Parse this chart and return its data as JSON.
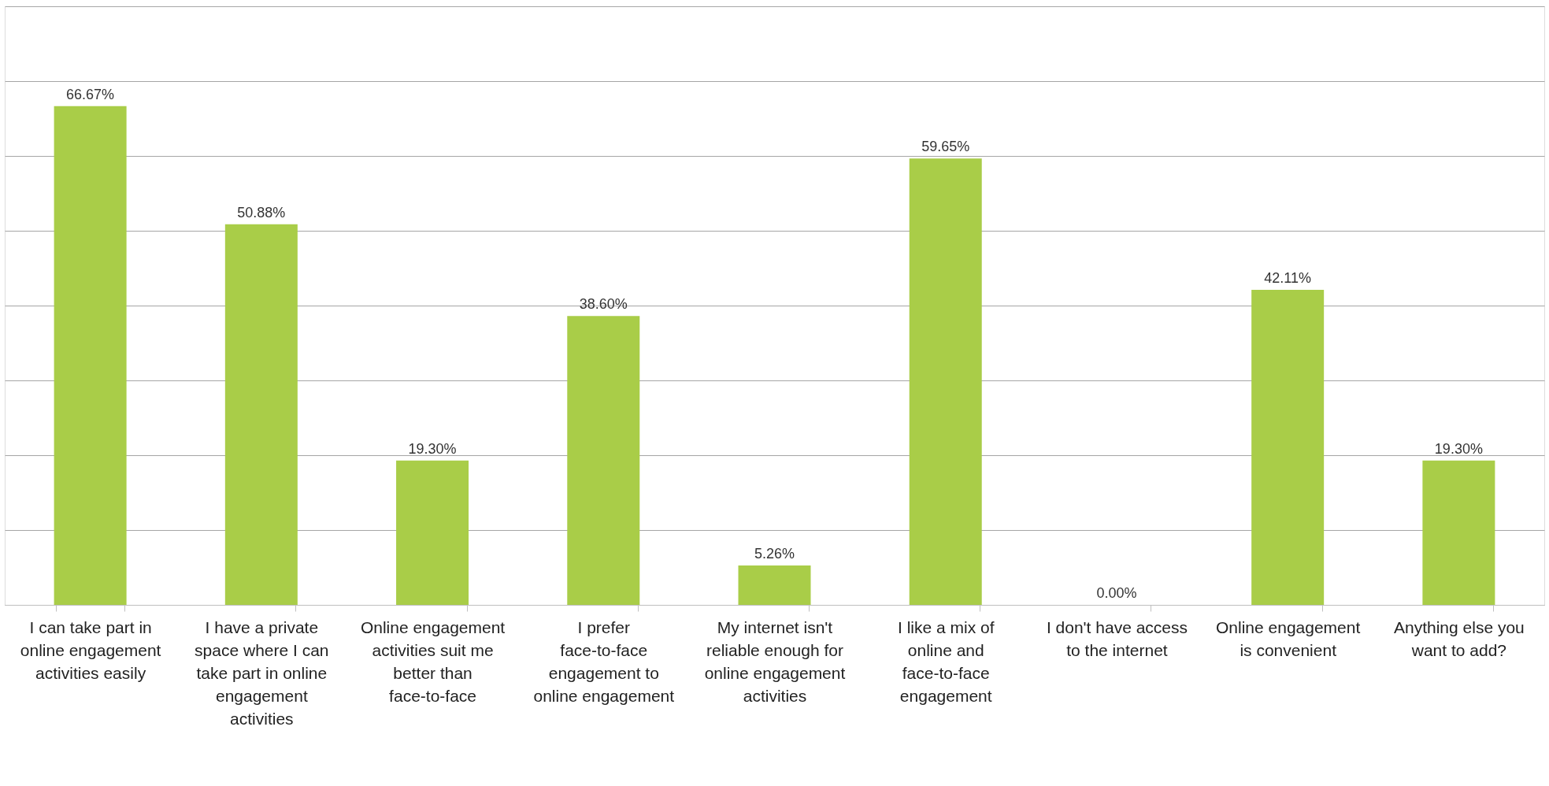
{
  "chart_data": {
    "type": "bar",
    "categories": [
      "I can take part in online engagement activities easily",
      "I have a private space where I can take part in online engagement activities",
      "Online engagement activities suit me better than face-to-face",
      "I prefer face-to-face engagement to online engagement",
      "My internet isn't reliable enough for online engagement activities",
      "I like a mix of online and face-to-face engagement",
      "I don't have access to the internet",
      "Online engagement is convenient",
      "Anything else you want to add?"
    ],
    "values": [
      66.67,
      50.88,
      19.3,
      38.6,
      5.26,
      59.65,
      0.0,
      42.11,
      19.3
    ],
    "value_labels": [
      "66.67%",
      "50.88%",
      "19.30%",
      "38.60%",
      "5.26%",
      "59.65%",
      "0.00%",
      "42.11%",
      "19.30%"
    ],
    "color": "#a9cd48",
    "ylim": [
      0,
      80
    ],
    "yticks": [
      {
        "value": 0,
        "label": null
      },
      {
        "value": 10,
        "label": null
      },
      {
        "value": 20,
        "label": null
      },
      {
        "value": 30,
        "label": null
      },
      {
        "value": 40,
        "label": null
      },
      {
        "value": 50,
        "label": null
      },
      {
        "value": 60,
        "label": null
      },
      {
        "value": 70,
        "label": null
      },
      {
        "value": 80,
        "label": null
      }
    ],
    "grid": "y",
    "tick_labels": "x"
  }
}
